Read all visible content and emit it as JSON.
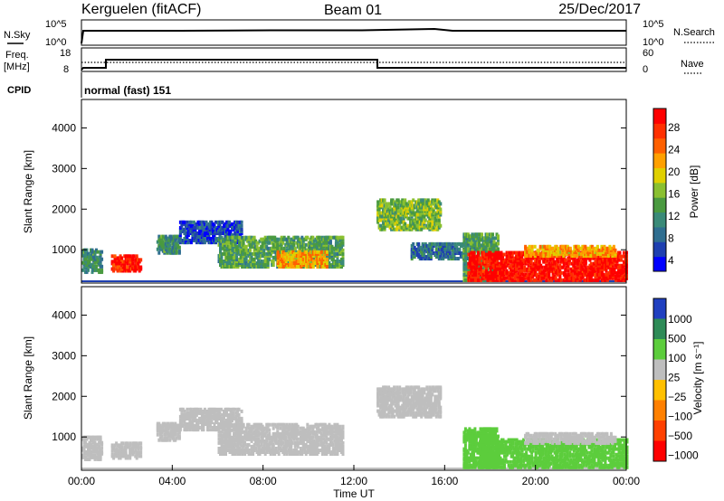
{
  "header": {
    "station": "Kerguelen (fitACF)",
    "beam": "Beam 01",
    "date": "25/Dec/2017"
  },
  "strip_labels": {
    "nsky": "N.Sky",
    "freq_line1": "Freq.",
    "freq_line2": "[MHz]",
    "cpid": "CPID",
    "nsearch": "N.Search",
    "nave": "Nave",
    "cpid_value": "normal (fast) 151",
    "nsky_ticks": [
      "10^5",
      "10^0"
    ],
    "nsearch_ticks": [
      "10^5",
      "10^0"
    ],
    "freq_ticks": [
      "18",
      "8"
    ],
    "nave_ticks": [
      "60",
      "0"
    ]
  },
  "colors": {
    "power": [
      "#0000ff",
      "#1e3fb0",
      "#2f6e90",
      "#3a8a78",
      "#4a9a40",
      "#8ac030",
      "#e0d000",
      "#ffa000",
      "#ff6000",
      "#ff3000",
      "#ff0000"
    ],
    "velocity": [
      "#2040c0",
      "#2e8b57",
      "#5ccd3c",
      "#bebebe",
      "#ffc000",
      "#ff8000",
      "#ff4000",
      "#ff0000"
    ]
  },
  "chart_data": [
    {
      "type": "line",
      "title": "N.Sky / N.Search",
      "y_ticks_left": [
        "10^5",
        "10^0"
      ],
      "y_ticks_right": [
        "10^5",
        "10^0"
      ],
      "series": [
        {
          "name": "N.Sky",
          "x": [
            0,
            0.05,
            24
          ],
          "y": [
            0,
            5,
            5
          ]
        },
        {
          "name": "N.Search",
          "x": [
            0,
            24
          ],
          "y": [
            0,
            0
          ]
        }
      ]
    },
    {
      "type": "line",
      "title": "Freq. [MHz] / Nave",
      "y_ticks_left": [
        "18",
        "8"
      ],
      "y_ticks_right": [
        "60",
        "0"
      ],
      "series": [
        {
          "name": "Freq",
          "x": [
            0,
            0.05,
            1.0,
            1.0,
            13.0,
            13.0,
            24.0
          ],
          "y": [
            8,
            11,
            11,
            12.8,
            12.8,
            11,
            11
          ]
        },
        {
          "name": "Nave",
          "x": [
            0,
            24
          ],
          "y": [
            20,
            20
          ]
        }
      ]
    },
    {
      "type": "heatmap",
      "title": "Power [dB]",
      "xlabel": "",
      "ylabel": "Slant Range [km]",
      "x_range": [
        0,
        24
      ],
      "y_range": [
        180,
        4700
      ],
      "y_ticks": [
        1000,
        2000,
        3000,
        4000
      ],
      "colorbar_label": "Power [dB]",
      "colorbar_ticks": [
        "4",
        "8",
        "12",
        "16",
        "20",
        "24",
        "28"
      ],
      "regions": [
        {
          "t0": 0.0,
          "t1": 0.85,
          "r0": 450,
          "r1": 1000,
          "v": 10
        },
        {
          "t0": 1.3,
          "t1": 2.6,
          "r0": 480,
          "r1": 880,
          "v": 27
        },
        {
          "t0": 3.3,
          "t1": 4.3,
          "r0": 920,
          "r1": 1360,
          "v": 10
        },
        {
          "t0": 4.3,
          "t1": 7.0,
          "r0": 1180,
          "r1": 1700,
          "v": 5
        },
        {
          "t0": 6.0,
          "t1": 11.5,
          "r0": 580,
          "r1": 1320,
          "v": 12
        },
        {
          "t0": 8.6,
          "t1": 10.8,
          "r0": 580,
          "r1": 950,
          "v": 20
        },
        {
          "t0": 13.0,
          "t1": 15.8,
          "r0": 1500,
          "r1": 2250,
          "v": 14
        },
        {
          "t0": 14.5,
          "t1": 17.0,
          "r0": 780,
          "r1": 1150,
          "v": 8
        },
        {
          "t0": 16.8,
          "t1": 18.3,
          "r0": 250,
          "r1": 1400,
          "v": 12
        },
        {
          "t0": 17.0,
          "t1": 24.0,
          "r0": 250,
          "r1": 950,
          "v": 28
        },
        {
          "t0": 19.5,
          "t1": 23.5,
          "r0": 850,
          "r1": 1100,
          "v": 20
        }
      ]
    },
    {
      "type": "heatmap",
      "title": "Velocity [m s^-1]",
      "xlabel": "Time UT",
      "ylabel": "Slant Range [km]",
      "x_range": [
        0,
        24
      ],
      "y_range": [
        180,
        4700
      ],
      "y_ticks": [
        1000,
        2000,
        3000,
        4000
      ],
      "x_ticks": [
        "00:00",
        "04:00",
        "08:00",
        "12:00",
        "16:00",
        "20:00",
        "00:00"
      ],
      "colorbar_label": "Velocity [m s^-1]",
      "colorbar_ticks": [
        "1000",
        "500",
        "100",
        "25",
        "-25",
        "-100",
        "-500",
        "-1000"
      ],
      "regions": [
        {
          "t0": 0.0,
          "t1": 0.85,
          "r0": 450,
          "r1": 1000,
          "v": 0
        },
        {
          "t0": 1.3,
          "t1": 2.6,
          "r0": 480,
          "r1": 880,
          "v": 0
        },
        {
          "t0": 3.3,
          "t1": 4.3,
          "r0": 920,
          "r1": 1360,
          "v": 0
        },
        {
          "t0": 4.3,
          "t1": 7.0,
          "r0": 1180,
          "r1": 1700,
          "v": 0
        },
        {
          "t0": 6.0,
          "t1": 11.5,
          "r0": 580,
          "r1": 1320,
          "v": 0
        },
        {
          "t0": 13.0,
          "t1": 15.8,
          "r0": 1500,
          "r1": 2250,
          "v": 0
        },
        {
          "t0": 16.8,
          "t1": 18.3,
          "r0": 250,
          "r1": 1200,
          "v": 60
        },
        {
          "t0": 17.5,
          "t1": 24.0,
          "r0": 250,
          "r1": 950,
          "v": 60
        },
        {
          "t0": 19.5,
          "t1": 23.5,
          "r0": 850,
          "r1": 1100,
          "v": 0
        }
      ]
    }
  ],
  "axis_labels": {
    "slant_range": "Slant Range [km]",
    "time": "Time UT",
    "power_colorbar": "Power [dB]",
    "velocity_colorbar": "Velocity [m s⁻¹]"
  }
}
